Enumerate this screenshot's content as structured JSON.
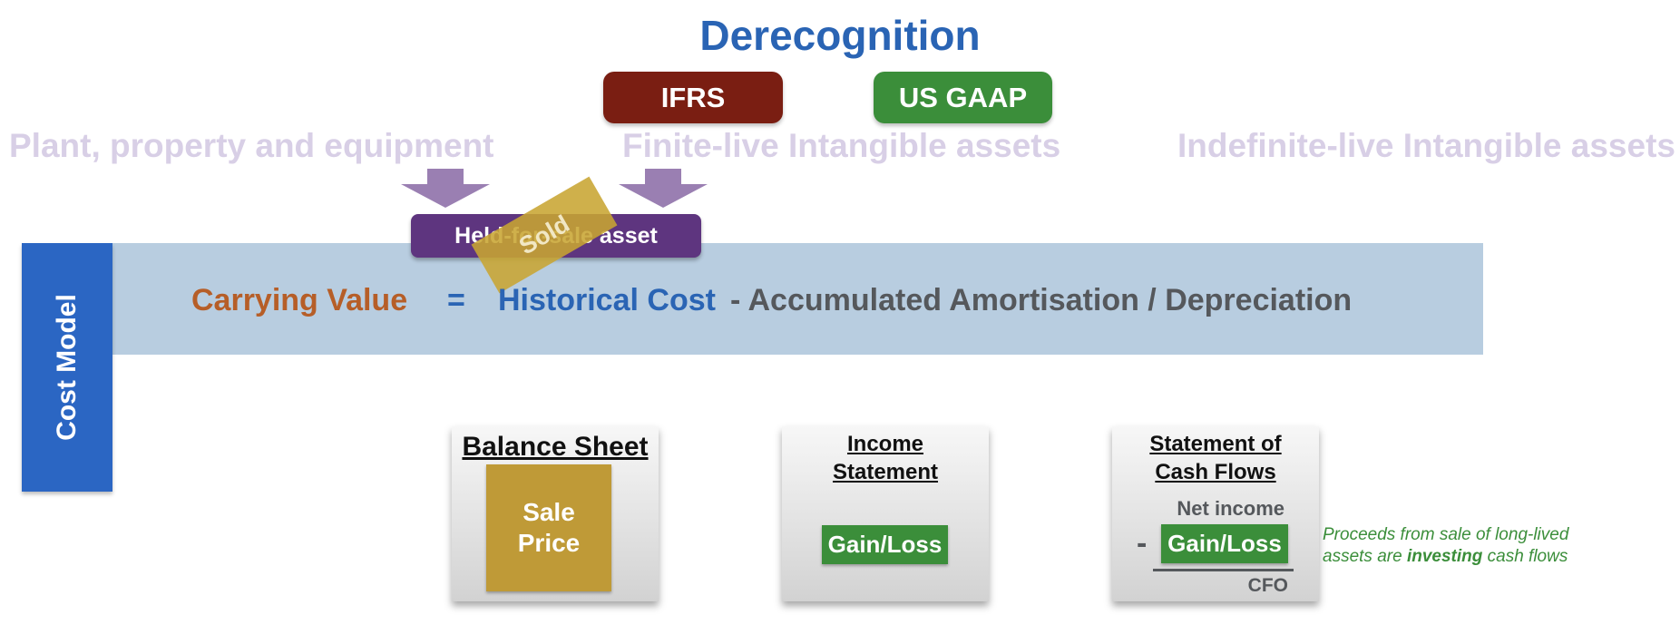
{
  "title": "Derecognition",
  "standards": {
    "ifrs": "IFRS",
    "us_gaap": "US GAAP"
  },
  "categories": {
    "ppe": "Plant, property and equipment",
    "finite": "Finite-live Intangible assets",
    "indefinite": "Indefinite-live Intangible assets"
  },
  "held_for_sale": "Held-for-sale asset",
  "sold_stamp": "Sold",
  "cost_model": "Cost Model",
  "formula": {
    "carrying_value": "Carrying Value",
    "equals": "=",
    "historical_cost": "Historical Cost",
    "accumulated": "- Accumulated Amortisation / Depreciation"
  },
  "balance_sheet": {
    "title": "Balance Sheet",
    "sale_line1": "Sale",
    "sale_line2": "Price"
  },
  "income_statement": {
    "title_line1": "Income",
    "title_line2": "Statement",
    "gain_loss": "Gain/Loss"
  },
  "cash_flows": {
    "title_line1": "Statement of",
    "title_line2": "Cash Flows",
    "net_income": "Net income",
    "minus": "-",
    "gain_loss": "Gain/Loss",
    "cfo": "CFO"
  },
  "note": {
    "line1": "Proceeds from sale of long-lived",
    "line2_prefix": "assets are",
    "line2_bold": "investing",
    "line2_suffix": "cash flows"
  },
  "colors": {
    "title_blue": "#2a64b4",
    "ifrs_red": "#7a1e12",
    "gaap_green": "#3b8e3a",
    "held_purple": "#5e357f",
    "arrow_purple": "#9a7fb2",
    "sold_gold": "#c8a532",
    "band_blue": "#b8cde0",
    "cost_model_blue": "#2b66c3",
    "carrying_orange": "#b65e28"
  }
}
